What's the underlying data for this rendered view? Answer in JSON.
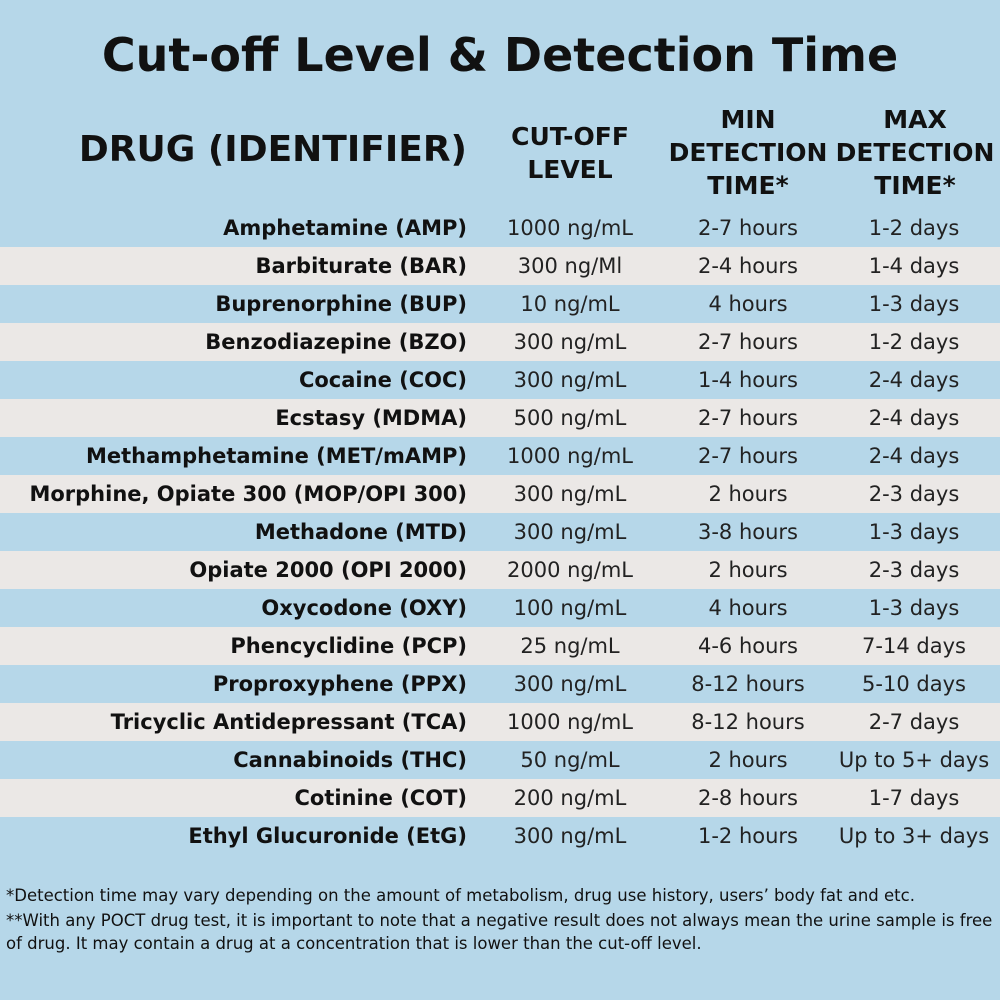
{
  "header": {
    "title": "Cut-off Level & Detection Time"
  },
  "table": {
    "headers": [
      [
        "DRUG (IDENTIFIER)"
      ],
      [
        "CUT-OFF",
        "LEVEL"
      ],
      [
        "MIN",
        "DETECTION",
        "TIME*"
      ],
      [
        "MAX",
        "DETECTION",
        "TIME*"
      ]
    ],
    "rows": [
      [
        "Amphetamine (AMP)",
        "1000 ng/mL",
        "2-7 hours",
        "1-2 days"
      ],
      [
        "Barbiturate (BAR)",
        "300 ng/Ml",
        "2-4 hours",
        "1-4 days"
      ],
      [
        "Buprenorphine (BUP)",
        "10 ng/mL",
        "4 hours",
        "1-3 days"
      ],
      [
        "Benzodiazepine (BZO)",
        "300 ng/mL",
        "2-7 hours",
        "1-2 days"
      ],
      [
        "Cocaine (COC)",
        "300 ng/mL",
        "1-4 hours",
        "2-4 days"
      ],
      [
        "Ecstasy (MDMA)",
        "500 ng/mL",
        "2-7 hours",
        "2-4 days"
      ],
      [
        "Methamphetamine (MET/mAMP)",
        "1000 ng/mL",
        "2-7 hours",
        "2-4 days"
      ],
      [
        "Morphine, Opiate 300 (MOP/OPI 300)",
        "300 ng/mL",
        "2 hours",
        "2-3 days"
      ],
      [
        "Methadone (MTD)",
        "300 ng/mL",
        "3-8 hours",
        "1-3 days"
      ],
      [
        "Opiate 2000 (OPI 2000)",
        "2000 ng/mL",
        "2 hours",
        "2-3 days"
      ],
      [
        "Oxycodone (OXY)",
        "100 ng/mL",
        "4 hours",
        "1-3 days"
      ],
      [
        "Phencyclidine (PCP)",
        "25 ng/mL",
        "4-6 hours",
        "7-14 days"
      ],
      [
        "Proproxyphene (PPX)",
        "300 ng/mL",
        "8-12 hours",
        "5-10 days"
      ],
      [
        "Tricyclic Antidepressant (TCA)",
        "1000 ng/mL",
        "8-12 hours",
        "2-7 days"
      ],
      [
        "Cannabinoids (THC)",
        "50 ng/mL",
        "2 hours",
        "Up to 5+ days"
      ],
      [
        "Cotinine (COT)",
        "200 ng/mL",
        "2-8 hours",
        "1-7 days"
      ],
      [
        "Ethyl Glucuronide (EtG)",
        "300 ng/mL",
        "1-2 hours",
        "Up to 3+ days"
      ]
    ]
  },
  "footnotes": [
    "*Detection time may vary depending on the amount of metabolism, drug use history, users’ body fat and etc.",
    "**With any POCT drug test, it is important to note that a negative result does not always mean the urine sample is free of drug. It may contain a drug at a concentration that is lower than the cut-off level."
  ]
}
